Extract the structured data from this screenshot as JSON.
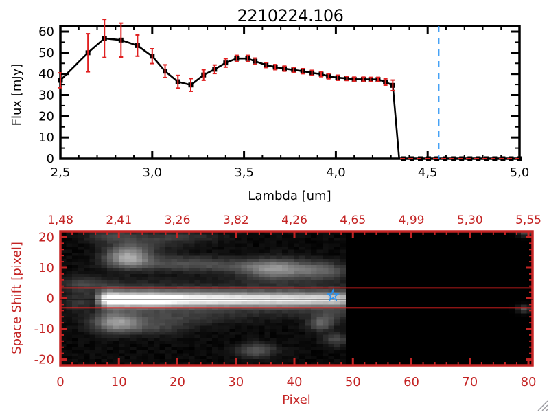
{
  "colors": {
    "black": "#000000",
    "axis_red": "#c42424",
    "bright_red": "#e02020",
    "blue": "#2492f5",
    "background": "#ffffff",
    "grip_gray": "#9a9aa0"
  },
  "chart_data": [
    {
      "id": "spectrum",
      "type": "line",
      "title": "2210224.106",
      "xlabel": "Lambda [um]",
      "ylabel": "Flux [mJy]",
      "xlim": [
        2.5,
        5.0
      ],
      "ylim": [
        0,
        62.6
      ],
      "x_tick_labels": [
        "2,5",
        "3,0",
        "3,5",
        "4,0",
        "4,5",
        "5,0"
      ],
      "x_tick_values": [
        2.5,
        3.0,
        3.5,
        4.0,
        4.5,
        5.0
      ],
      "x_minor_step": 0.1,
      "y_ticks": [
        0,
        10,
        20,
        30,
        40,
        50,
        60
      ],
      "y_minor_step": 5,
      "x": [
        2.5,
        2.65,
        2.74,
        2.83,
        2.92,
        3.0,
        3.07,
        3.14,
        3.21,
        3.28,
        3.34,
        3.4,
        3.46,
        3.52,
        3.56,
        3.62,
        3.67,
        3.72,
        3.77,
        3.82,
        3.87,
        3.92,
        3.96,
        4.01,
        4.06,
        4.1,
        4.15,
        4.19,
        4.23,
        4.27,
        4.31
      ],
      "flux": [
        37.0,
        50.0,
        56.8,
        56.0,
        53.4,
        48.4,
        41.3,
        36.3,
        34.8,
        39.5,
        42.2,
        45.2,
        47.3,
        47.3,
        46.0,
        44.2,
        43.2,
        42.5,
        41.9,
        41.3,
        40.5,
        39.9,
        38.9,
        38.2,
        37.9,
        37.5,
        37.5,
        37.4,
        37.4,
        36.2,
        34.6
      ],
      "err": [
        3.5,
        9.0,
        9.0,
        8.0,
        5.0,
        3.5,
        3.0,
        3.0,
        3.0,
        2.5,
        2.0,
        2.0,
        1.5,
        1.5,
        1.5,
        1.2,
        1.2,
        1.2,
        1.2,
        1.2,
        1.2,
        1.2,
        1.2,
        1.2,
        1.0,
        1.0,
        1.0,
        1.0,
        1.0,
        1.5,
        2.5
      ],
      "drop_x": 4.345,
      "zero_tail_x": [
        4.37,
        4.415,
        4.46,
        4.505,
        4.55,
        4.595,
        4.64,
        4.685,
        4.73,
        4.775,
        4.82,
        4.865,
        4.91,
        4.955,
        5.0
      ],
      "blue_vline_x": 4.56,
      "red_dash_y": 0,
      "red_dash_from_x": 4.35,
      "legend": "none",
      "grid": "off"
    },
    {
      "id": "spectral-image",
      "type": "heatmap",
      "xlabel": "Pixel",
      "ylabel": "Space Shift [pixel]",
      "xlim": [
        0,
        80.7
      ],
      "ylim": [
        -21.9,
        21.9
      ],
      "x_ticks": [
        0,
        10,
        20,
        30,
        40,
        50,
        60,
        70,
        80
      ],
      "x_minor_step": 2,
      "y_ticks": [
        -20,
        -10,
        0,
        10,
        20
      ],
      "y_minor_step": 2,
      "top_axis_tick_labels": [
        "1,48",
        "2,41",
        "3,26",
        "3,82",
        "4,26",
        "4,65",
        "4,99",
        "5,30",
        "5,55"
      ],
      "top_axis_tick_positions": [
        0,
        10,
        20,
        30,
        40,
        50,
        60,
        70,
        80
      ],
      "aperture_lines_y": [
        3.4,
        -3.1
      ],
      "trace_line_y": -0.3,
      "star_marker": {
        "x": 46.6,
        "y": 0.9
      },
      "data_cutoff_x": 48.8,
      "band": {
        "y_center": -0.4,
        "sigma": 1.5,
        "wing_sigma": 3.5,
        "wing_amp": 0.3,
        "profile": [
          [
            5.5,
            0
          ],
          [
            6.5,
            0.3
          ],
          [
            7.5,
            0.75
          ],
          [
            8.5,
            1.0
          ],
          [
            16,
            1.0
          ],
          [
            22,
            0.85
          ],
          [
            30,
            0.78
          ],
          [
            38,
            0.74
          ],
          [
            44,
            0.7
          ],
          [
            47,
            0.66
          ],
          [
            48.5,
            0.6
          ],
          [
            48.9,
            0
          ]
        ]
      },
      "blobs": [
        [
          11.5,
          13.5,
          2.6,
          2.3,
          0.6
        ],
        [
          20.0,
          11.5,
          6.0,
          1.8,
          0.22
        ],
        [
          30.0,
          10.5,
          6.0,
          1.5,
          0.14
        ],
        [
          37.0,
          9.5,
          4.0,
          2.3,
          0.48
        ],
        [
          45.0,
          9.0,
          3.0,
          2.0,
          0.28
        ],
        [
          9.5,
          -8.0,
          2.8,
          2.2,
          0.5
        ],
        [
          16.0,
          -9.5,
          4.0,
          1.8,
          0.18
        ],
        [
          20.0,
          -6.5,
          6.0,
          1.5,
          0.12
        ],
        [
          33.5,
          -17.0,
          2.2,
          1.6,
          0.3
        ],
        [
          44.5,
          -8.5,
          1.5,
          1.5,
          0.28
        ],
        [
          47.0,
          -13.5,
          1.5,
          1.5,
          0.22
        ],
        [
          46.0,
          -6.0,
          2.0,
          1.5,
          0.15
        ],
        [
          9.0,
          20.5,
          3.0,
          1.5,
          0.2
        ],
        [
          20.0,
          20.0,
          5.0,
          1.3,
          0.16
        ],
        [
          14.0,
          17.5,
          4.0,
          1.5,
          0.15
        ],
        [
          5.0,
          2.0,
          3.0,
          3.0,
          0.12
        ],
        [
          3.0,
          -2.0,
          2.0,
          2.0,
          0.1
        ],
        [
          3.5,
          5.0,
          2.5,
          1.5,
          0.15
        ]
      ],
      "post_spots": [
        [
          79.3,
          -3.5,
          0.8,
          0.8,
          0.3
        ],
        [
          79.6,
          21.5,
          1.0,
          0.8,
          0.25
        ]
      ]
    }
  ]
}
